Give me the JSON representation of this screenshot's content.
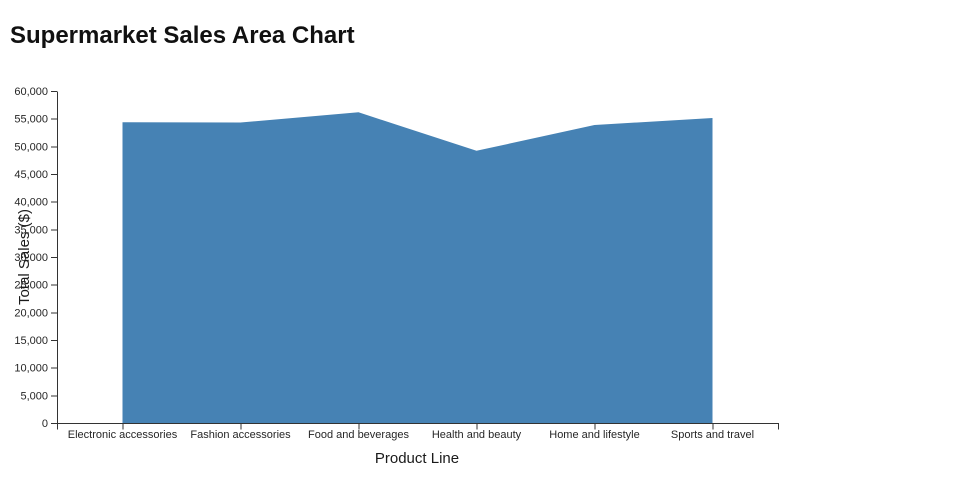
{
  "page": {
    "heading": "Supermarket Sales Area Chart"
  },
  "chart_data": {
    "type": "area",
    "title": "Supermarket Sales Area Chart",
    "xlabel": "Product Line",
    "ylabel": "Total Sales ($)",
    "categories": [
      "Electronic accessories",
      "Fashion accessories",
      "Food and beverages",
      "Health and beauty",
      "Home and lifestyle",
      "Sports and travel"
    ],
    "values": [
      54338,
      54306,
      56145,
      49194,
      53862,
      55123
    ],
    "ylim": [
      0,
      60000
    ],
    "ytick_interval": 5000,
    "grid": false,
    "legend": "none",
    "colors": {
      "area_fill": "#4682B4",
      "axis_line": "#333333",
      "tick_text": "#262626",
      "title_text": "#111111"
    }
  }
}
